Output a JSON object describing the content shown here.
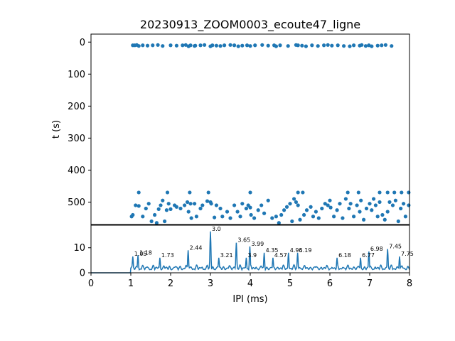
{
  "chart_data": [
    {
      "type": "scatter",
      "title": "20230913_ZOOM0003_ecoute47_ligne",
      "xlabel": "",
      "ylabel": "t (s)",
      "xlim": [
        0,
        8
      ],
      "ylim": [
        570,
        -25
      ],
      "y_inverted": true,
      "grid": false,
      "yticks": [
        0,
        100,
        200,
        300,
        400,
        500
      ],
      "color": "#1f77b4",
      "x": [
        1.05,
        1.1,
        1.15,
        1.2,
        1.3,
        1.42,
        1.55,
        1.68,
        1.8,
        2.0,
        2.15,
        2.3,
        2.38,
        2.45,
        2.5,
        2.6,
        2.62,
        2.75,
        2.85,
        3.0,
        3.05,
        3.15,
        3.25,
        3.35,
        3.5,
        3.6,
        3.7,
        3.8,
        3.92,
        4.0,
        4.12,
        4.3,
        4.45,
        4.6,
        4.65,
        4.75,
        4.95,
        5.15,
        5.2,
        5.3,
        5.4,
        5.55,
        5.7,
        5.85,
        5.95,
        6.05,
        6.2,
        6.35,
        6.5,
        6.6,
        6.75,
        6.8,
        6.9,
        6.98,
        7.05,
        7.2,
        7.3,
        7.4,
        7.55,
        1.02,
        1.05,
        1.12,
        1.2,
        1.3,
        1.38,
        1.45,
        1.52,
        1.6,
        1.65,
        1.7,
        1.75,
        1.8,
        1.85,
        1.9,
        1.95,
        2.0,
        2.1,
        2.15,
        2.25,
        2.35,
        2.42,
        2.45,
        2.5,
        2.52,
        2.6,
        2.65,
        2.75,
        2.8,
        2.92,
        3.0,
        3.02,
        3.1,
        3.15,
        3.25,
        3.3,
        3.42,
        3.5,
        3.6,
        3.68,
        3.75,
        3.8,
        3.9,
        3.95,
        4.0,
        4.02,
        4.1,
        4.2,
        4.28,
        4.35,
        4.45,
        4.55,
        4.65,
        4.72,
        4.78,
        4.85,
        4.92,
        5.0,
        5.05,
        5.1,
        5.15,
        5.2,
        5.25,
        5.35,
        5.42,
        5.52,
        5.58,
        5.65,
        5.72,
        5.8,
        5.88,
        5.95,
        6.0,
        6.02,
        6.1,
        6.18,
        6.25,
        6.32,
        6.4,
        6.48,
        6.52,
        6.6,
        6.68,
        6.75,
        6.78,
        6.85,
        6.92,
        7.0,
        7.05,
        7.1,
        7.15,
        7.2,
        7.25,
        7.32,
        7.38,
        7.45,
        7.5,
        7.58,
        7.65,
        7.72,
        7.78,
        7.85,
        7.9,
        7.98,
        1.2,
        1.92,
        2.48,
        2.95,
        4.0,
        5.2,
        5.32,
        6.45,
        6.72,
        7.25,
        7.45,
        7.62,
        7.8,
        7.98
      ],
      "y": [
        10,
        10,
        9,
        12,
        10,
        11,
        10,
        9,
        12,
        10,
        11,
        10,
        9,
        13,
        10,
        12,
        11,
        10,
        9,
        13,
        10,
        11,
        12,
        10,
        9,
        10,
        13,
        11,
        10,
        12,
        10,
        9,
        11,
        10,
        13,
        10,
        12,
        9,
        10,
        11,
        13,
        10,
        12,
        10,
        9,
        11,
        10,
        12,
        13,
        10,
        11,
        9,
        12,
        10,
        13,
        11,
        10,
        9,
        12,
        545,
        540,
        510,
        512,
        545,
        520,
        505,
        560,
        540,
        565,
        522,
        510,
        495,
        560,
        525,
        505,
        522,
        510,
        515,
        520,
        510,
        500,
        530,
        505,
        550,
        505,
        545,
        520,
        510,
        497,
        500,
        505,
        548,
        510,
        520,
        545,
        530,
        550,
        510,
        530,
        545,
        505,
        520,
        510,
        517,
        540,
        550,
        525,
        510,
        535,
        495,
        550,
        545,
        565,
        540,
        525,
        515,
        505,
        560,
        490,
        500,
        510,
        555,
        540,
        525,
        515,
        545,
        530,
        550,
        520,
        505,
        510,
        495,
        517,
        545,
        525,
        505,
        550,
        490,
        520,
        505,
        545,
        510,
        530,
        495,
        555,
        520,
        505,
        525,
        490,
        510,
        545,
        500,
        540,
        555,
        530,
        500,
        510,
        495,
        560,
        520,
        505,
        545,
        510,
        470,
        470,
        470,
        470,
        470,
        470,
        470,
        470,
        470,
        470,
        470,
        470,
        470,
        470
      ]
    },
    {
      "type": "line",
      "title": "",
      "xlabel": "IPI (ms)",
      "ylabel": "",
      "xlim": [
        0,
        8
      ],
      "ylim": [
        0,
        19
      ],
      "grid": false,
      "xticks": [
        0,
        1,
        2,
        3,
        4,
        5,
        6,
        7,
        8
      ],
      "yticks": [
        0,
        10
      ],
      "color": "#1f77b4",
      "peaks": [
        {
          "x": 1.05,
          "y": 6.5,
          "label": "1.05"
        },
        {
          "x": 1.18,
          "y": 7.0,
          "label": "1.18"
        },
        {
          "x": 1.73,
          "y": 6.0,
          "label": "1.73"
        },
        {
          "x": 2.44,
          "y": 9.0,
          "label": "2.44"
        },
        {
          "x": 3.0,
          "y": 16.5,
          "label": "3.0"
        },
        {
          "x": 3.21,
          "y": 6.0,
          "label": "3.21"
        },
        {
          "x": 3.65,
          "y": 12.0,
          "label": "3.65"
        },
        {
          "x": 3.9,
          "y": 6.0,
          "label": "3.9"
        },
        {
          "x": 3.99,
          "y": 10.5,
          "label": "3.99"
        },
        {
          "x": 4.35,
          "y": 8.0,
          "label": "4.35"
        },
        {
          "x": 4.57,
          "y": 6.0,
          "label": "4.57"
        },
        {
          "x": 4.96,
          "y": 8.0,
          "label": "4.96"
        },
        {
          "x": 5.19,
          "y": 8.0,
          "label": "5.19"
        },
        {
          "x": 6.18,
          "y": 6.0,
          "label": "6.18"
        },
        {
          "x": 6.77,
          "y": 6.0,
          "label": "6.77"
        },
        {
          "x": 6.98,
          "y": 8.5,
          "label": "6.98"
        },
        {
          "x": 7.45,
          "y": 9.5,
          "label": "7.45"
        },
        {
          "x": 7.75,
          "y": 6.5,
          "label": "7.75"
        }
      ]
    }
  ]
}
